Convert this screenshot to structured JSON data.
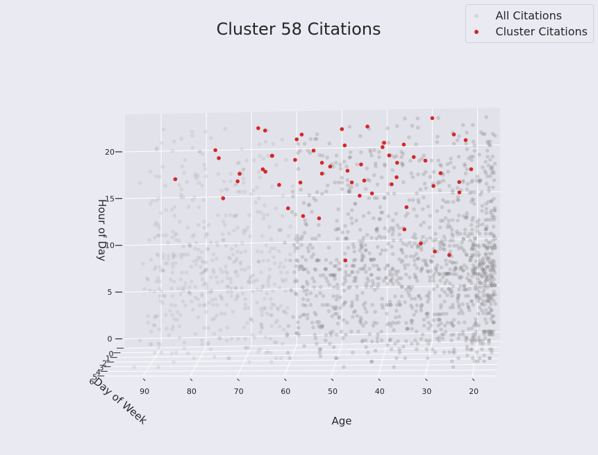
{
  "chart_data": {
    "type": "scatter",
    "title": "Cluster 58 Citations",
    "xlabel": "Age",
    "ylabel": "Day of Week",
    "zlabel": "Hour of Day",
    "x_ticks": [
      90,
      80,
      70,
      60,
      50,
      40,
      30,
      20
    ],
    "y_ticks": [
      0,
      1,
      2,
      3,
      4,
      5,
      6
    ],
    "z_ticks": [
      0,
      5,
      10,
      15,
      20
    ],
    "xlim": [
      15,
      98
    ],
    "ylim": [
      0,
      6
    ],
    "zlim": [
      -1,
      24
    ],
    "grid": true,
    "legend_placement": "top-right",
    "series": [
      {
        "name": "All Citations",
        "color": "#808080",
        "description_points": [
          {
            "age": 20,
            "day": 0,
            "hour": 0
          },
          {
            "age": 25,
            "day": 2,
            "hour": 1
          },
          {
            "age": 30,
            "day": 4,
            "hour": 2
          },
          {
            "age": 35,
            "day": 1,
            "hour": 7
          },
          {
            "age": 40,
            "day": 3,
            "hour": 8
          },
          {
            "age": 45,
            "day": 5,
            "hour": 9
          },
          {
            "age": 50,
            "day": 2,
            "hour": 12
          },
          {
            "age": 55,
            "day": 0,
            "hour": 15
          },
          {
            "age": 60,
            "day": 4,
            "hour": 17
          },
          {
            "age": 65,
            "day": 6,
            "hour": 19
          },
          {
            "age": 70,
            "day": 1,
            "hour": 21
          },
          {
            "age": 80,
            "day": 3,
            "hour": 14
          },
          {
            "age": 90,
            "day": 5,
            "hour": 10
          }
        ]
      },
      {
        "name": "Cluster Citations",
        "color": "#d62728",
        "points": [
          [
            22,
            3,
            23
          ],
          [
            25,
            1,
            22
          ],
          [
            27,
            5,
            21
          ],
          [
            30,
            0,
            23
          ],
          [
            31,
            2,
            20
          ],
          [
            33,
            4,
            22
          ],
          [
            34,
            6,
            18
          ],
          [
            36,
            1,
            21
          ],
          [
            37,
            3,
            19
          ],
          [
            38,
            5,
            23
          ],
          [
            40,
            2,
            22
          ],
          [
            41,
            0,
            20
          ],
          [
            42,
            4,
            18
          ],
          [
            43,
            6,
            21
          ],
          [
            44,
            1,
            23
          ],
          [
            45,
            3,
            17
          ],
          [
            46,
            5,
            20
          ],
          [
            48,
            2,
            19
          ],
          [
            50,
            0,
            22
          ],
          [
            51,
            4,
            21
          ],
          [
            52,
            6,
            23
          ],
          [
            54,
            1,
            18
          ],
          [
            55,
            3,
            22
          ],
          [
            57,
            5,
            20
          ],
          [
            58,
            2,
            23
          ],
          [
            60,
            0,
            21
          ],
          [
            62,
            4,
            19
          ],
          [
            64,
            6,
            22
          ],
          [
            66,
            3,
            20
          ],
          [
            68,
            1,
            23
          ],
          [
            70,
            5,
            21
          ],
          [
            72,
            2,
            18
          ],
          [
            75,
            4,
            22
          ],
          [
            78,
            0,
            20
          ],
          [
            85,
            3,
            19
          ],
          [
            28,
            6,
            13
          ],
          [
            32,
            2,
            11
          ],
          [
            35,
            4,
            14
          ],
          [
            26,
            1,
            9
          ],
          [
            47,
            6,
            12
          ],
          [
            53,
            5,
            16
          ],
          [
            24,
            0,
            15
          ],
          [
            29,
            3,
            18
          ],
          [
            39,
            0,
            16
          ],
          [
            56,
            6,
            17
          ],
          [
            61,
            2,
            15
          ],
          [
            63,
            5,
            23
          ],
          [
            67,
            0,
            22
          ],
          [
            23,
            5,
            20
          ],
          [
            21,
            2,
            19
          ],
          [
            49,
            1,
            21
          ],
          [
            59,
            3,
            21
          ],
          [
            65,
            1,
            20
          ],
          [
            73,
            6,
            19
          ],
          [
            44,
            5,
            22
          ],
          [
            36,
            6,
            23
          ]
        ]
      }
    ]
  }
}
